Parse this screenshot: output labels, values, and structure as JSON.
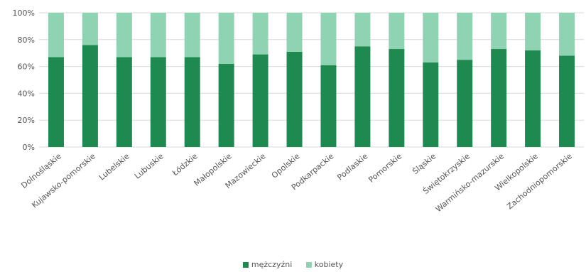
{
  "chart_data": {
    "type": "bar",
    "stacked": true,
    "categories": [
      "Dolnośląskie",
      "Kujawsko-pomorskie",
      "Lubelskie",
      "Lubuskie",
      "Łódzkie",
      "Małopolskie",
      "Mazowieckie",
      "Opolskie",
      "Podkarpackie",
      "Podlaskie",
      "Pomorskie",
      "Śląskie",
      "Świętokrzyskie",
      "Warmińsko-mazurskie",
      "Wielkopolskie",
      "Zachodniopomorskie"
    ],
    "series": [
      {
        "name": "mężczyźni",
        "color": "#1e8a4f",
        "values": [
          67,
          76,
          67,
          67,
          67,
          62,
          69,
          71,
          61,
          75,
          73,
          63,
          65,
          73,
          72,
          68
        ]
      },
      {
        "name": "kobiety",
        "color": "#8fd3b2",
        "values": [
          33,
          24,
          33,
          33,
          33,
          38,
          31,
          29,
          39,
          25,
          27,
          37,
          35,
          27,
          28,
          32
        ]
      }
    ],
    "ylim": [
      0,
      100
    ],
    "yticks": [
      "0%",
      "20%",
      "40%",
      "60%",
      "80%",
      "100%"
    ],
    "ytick_values": [
      0,
      20,
      40,
      60,
      80,
      100
    ],
    "grid": true,
    "legend_position": "bottom",
    "title": "",
    "xlabel": "",
    "ylabel": ""
  }
}
